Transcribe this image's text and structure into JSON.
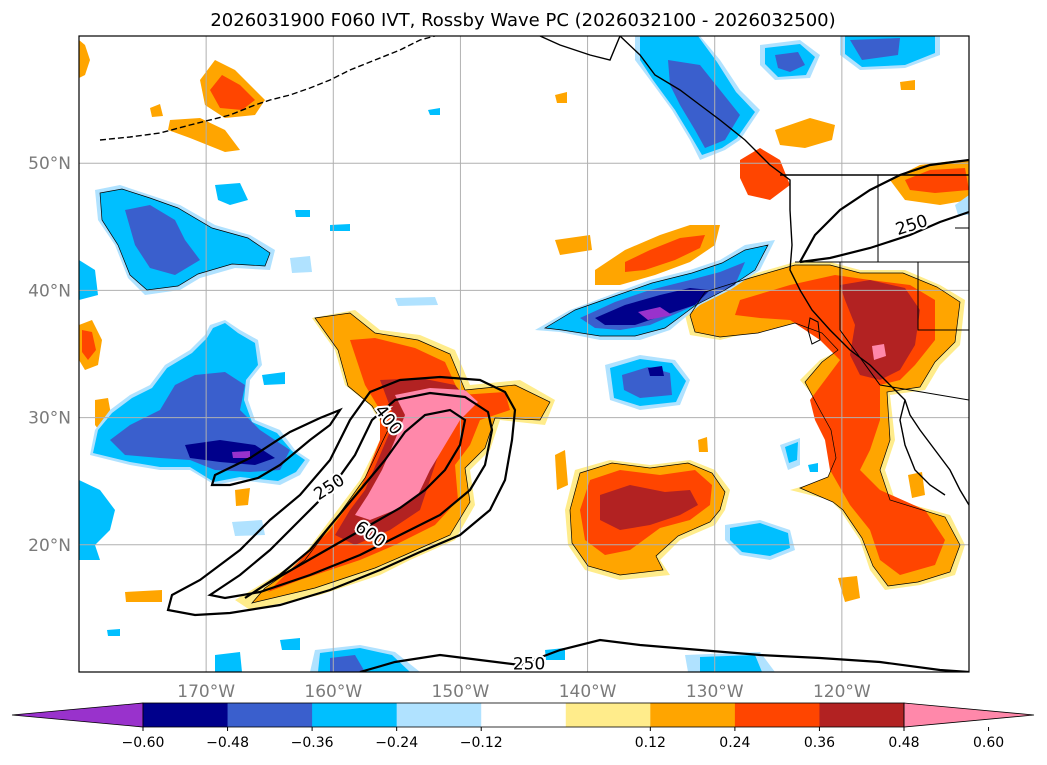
{
  "title": "2026031900 F060 IVT, Rossby Wave PC (2026032100 - 2026032500)",
  "map": {
    "lon_range": [
      -180,
      -110
    ],
    "lat_range": [
      10,
      60
    ],
    "lat_ticks": [
      {
        "value": 20,
        "label": "20°N"
      },
      {
        "value": 30,
        "label": "30°N"
      },
      {
        "value": 40,
        "label": "40°N"
      },
      {
        "value": 50,
        "label": "50°N"
      }
    ],
    "lon_ticks": [
      {
        "value": -170,
        "label": "170°W"
      },
      {
        "value": -160,
        "label": "160°W"
      },
      {
        "value": -150,
        "label": "150°W"
      },
      {
        "value": -140,
        "label": "140°W"
      },
      {
        "value": -130,
        "label": "130°W"
      },
      {
        "value": -120,
        "label": "120°W"
      }
    ],
    "contour_labels": [
      {
        "text": "250",
        "lon": -160.3,
        "lat": 24.5,
        "angle": -33
      },
      {
        "text": "400",
        "lon": -155.7,
        "lat": 29.8,
        "angle": 52
      },
      {
        "text": "600",
        "lon": -157.1,
        "lat": 20.8,
        "angle": 35
      },
      {
        "text": "250",
        "lon": -114.5,
        "lat": 45.1,
        "angle": -18
      },
      {
        "text": "250",
        "lon": -144.6,
        "lat": 10.6,
        "angle": 0
      }
    ]
  },
  "colorbar": {
    "colors": [
      "#9932cc",
      "#00008b",
      "#3a5fcd",
      "#00bfff",
      "#b0e2ff",
      "#ffffff",
      "#ffec8b",
      "#ffa500",
      "#ff4500",
      "#b22222",
      "#ff88aa"
    ],
    "labels": [
      "−0.60",
      "−0.48",
      "−0.36",
      "−0.24",
      "−0.12",
      "0.12",
      "0.24",
      "0.36",
      "0.48",
      "0.60"
    ]
  },
  "anomaly_colors": {
    "neg_light": "#b0e2ff",
    "neg_mid": "#00bfff",
    "neg_strong": "#3a5fcd",
    "neg_deep": "#00008b",
    "neg_extreme": "#9932cc",
    "pos_light": "#ffec8b",
    "pos_mid": "#ffa500",
    "pos_strong": "#ff4500",
    "pos_deep": "#b22222",
    "pos_extreme": "#ff88aa"
  }
}
